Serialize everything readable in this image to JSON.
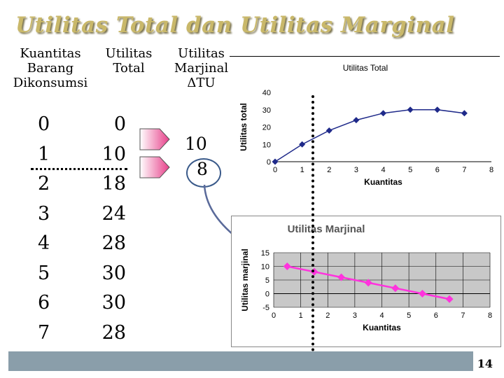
{
  "title": "Utilitas Total dan Utilitas Marginal",
  "table": {
    "headers": {
      "kuantitas": [
        "Kuantitas",
        "Barang",
        "Dikonsumsi"
      ],
      "utilitas_total": [
        "Utilitas",
        "Total"
      ],
      "utilitas_marjinal": [
        "Utilitas",
        "Marjinal",
        "ΔTU"
      ]
    },
    "kuantitas": [
      "0",
      "1",
      "2",
      "3",
      "4",
      "5",
      "6",
      "7"
    ],
    "total": [
      "0",
      "10",
      "18",
      "24",
      "28",
      "30",
      "30",
      "28"
    ],
    "marjinal_shown": [
      "10",
      "8"
    ]
  },
  "chart_data": [
    {
      "type": "line",
      "title": "Utilitas Total",
      "xlabel": "Kuantitas",
      "ylabel": "Utilitas total",
      "x": [
        0,
        1,
        2,
        3,
        4,
        5,
        6,
        7
      ],
      "y": [
        0,
        10,
        18,
        24,
        28,
        30,
        30,
        28
      ],
      "xlim": [
        0,
        8
      ],
      "ylim": [
        0,
        40
      ],
      "xticks": [
        0,
        1,
        2,
        3,
        4,
        5,
        6,
        7,
        8
      ],
      "yticks": [
        0,
        10,
        20,
        30,
        40
      ],
      "grid": false,
      "color": "#1f2a8a"
    },
    {
      "type": "line",
      "title": "Utilitas Marjinal",
      "xlabel": "Kuantitas",
      "ylabel": "Utilitas marjinal",
      "x": [
        0.5,
        1.5,
        2.5,
        3.5,
        4.5,
        5.5,
        6.5
      ],
      "y": [
        10,
        8,
        6,
        4,
        2,
        0,
        -2
      ],
      "xlim": [
        0,
        8
      ],
      "ylim": [
        -5,
        15
      ],
      "xticks": [
        0,
        1,
        2,
        3,
        4,
        5,
        6,
        7,
        8
      ],
      "yticks": [
        -5,
        0,
        5,
        10,
        15
      ],
      "grid": true,
      "color": "#ff33dd"
    }
  ],
  "page_number": "14"
}
